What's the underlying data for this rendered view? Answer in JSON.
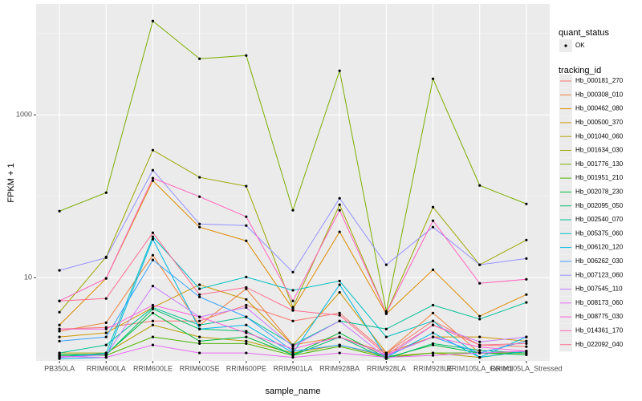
{
  "chart_data": {
    "type": "line",
    "x_label": "sample_name",
    "y_label": "FPKM + 1",
    "log_y": true,
    "grid": true,
    "legend_position": "right",
    "shape_legend": {
      "title": "quant_status",
      "labels": [
        "OK"
      ]
    },
    "color_legend_title": "tracking_id",
    "point_color": "#000000",
    "categories": [
      "PB350LA",
      "RRIM600LA",
      "RRIM600LE",
      "RRIM600SE",
      "RRIM600PE",
      "RRIM901LA",
      "RRIM928BA",
      "RRIM928LA",
      "RRIM928LE",
      "RRIM105LA_Control",
      "RRIM105LA_Stressed"
    ],
    "ylim": [
      0.95,
      23000
    ],
    "yticks": [
      10,
      1000
    ],
    "series": [
      {
        "name": "Hb_000181_270",
        "color": "#F8766D",
        "values": [
          2.34,
          2.45,
          2.94,
          2.94,
          4.6,
          2.94,
          3.68,
          1.19,
          2.94,
          1.49,
          1.42
        ]
      },
      {
        "name": "Hb_000308_010",
        "color": "#EC823C",
        "values": [
          2.2,
          2.8,
          18.9,
          2.6,
          7.3,
          1.49,
          1.87,
          1.19,
          3.68,
          1.19,
          1.19
        ]
      },
      {
        "name": "Hb_000462_080",
        "color": "#DE8C00",
        "values": [
          2.62,
          9.8,
          155.6,
          41.8,
          28.4,
          4.13,
          36.5,
          3.6,
          12.5,
          3.37,
          6.2
        ]
      },
      {
        "name": "Hb_000500_370",
        "color": "#CD9600",
        "values": [
          1.87,
          2.1,
          4.3,
          8.2,
          5.4,
          1.49,
          6.6,
          1.19,
          1.87,
          1.87,
          1.66
        ]
      },
      {
        "name": "Hb_001040_060",
        "color": "#B79F00",
        "values": [
          1.19,
          1.19,
          2.62,
          1.87,
          1.66,
          1.19,
          1.49,
          1.08,
          1.19,
          1.05,
          1.25
        ]
      },
      {
        "name": "Hb_001634_030",
        "color": "#9DA700",
        "values": [
          3.77,
          18.0,
          369,
          171,
          133,
          4.32,
          78.8,
          3.68,
          73.6,
          14.4,
          29.0
        ]
      },
      {
        "name": "Hb_001776_130",
        "color": "#7CAE00",
        "values": [
          65.7,
          110.7,
          14220,
          4890,
          5360,
          67.3,
          3480,
          3.86,
          2775,
          135.8,
          80.6
        ]
      },
      {
        "name": "Hb_001951_210",
        "color": "#4DB400",
        "values": [
          1.11,
          1.11,
          1.87,
          1.55,
          1.55,
          1.11,
          1.43,
          1.04,
          1.19,
          1.19,
          1.19
        ]
      },
      {
        "name": "Hb_002078_230",
        "color": "#00BA38",
        "values": [
          1.13,
          1.15,
          3.68,
          1.66,
          1.87,
          1.13,
          2.1,
          1.04,
          1.49,
          1.19,
          1.13
        ]
      },
      {
        "name": "Hb_002095_050",
        "color": "#00BE6C",
        "values": [
          1.11,
          1.13,
          4.13,
          2.34,
          2.2,
          1.11,
          1.87,
          1.01,
          1.55,
          1.28,
          1.19
        ]
      },
      {
        "name": "Hb_002540_070",
        "color": "#00C096",
        "values": [
          1.19,
          1.49,
          4.3,
          2.62,
          3.3,
          1.49,
          2.94,
          2.34,
          4.6,
          3.1,
          4.96
        ]
      },
      {
        "name": "Hb_005375_060",
        "color": "#00BFC4",
        "values": [
          1.05,
          1.19,
          31.8,
          7.3,
          10.2,
          7.0,
          9.1,
          1.87,
          2.94,
          1.05,
          1.25
        ]
      },
      {
        "name": "Hb_006120_120",
        "color": "#00B8E7",
        "values": [
          1.01,
          1.05,
          29.7,
          2.34,
          2.62,
          1.19,
          8.2,
          1.05,
          2.1,
          1.05,
          1.87
        ]
      },
      {
        "name": "Hb_006262_030",
        "color": "#35A2FF",
        "values": [
          1.66,
          1.87,
          16.5,
          5.8,
          3.3,
          1.25,
          1.49,
          1.11,
          1.87,
          1.19,
          1.66
        ]
      },
      {
        "name": "Hb_007123_060",
        "color": "#9590FF",
        "values": [
          12.3,
          17.6,
          209,
          45.7,
          43.7,
          11.7,
          94.4,
          14.4,
          41.8,
          14.4,
          17.2
        ]
      },
      {
        "name": "Hb_007545_110",
        "color": "#C77CFF",
        "values": [
          1.05,
          1.13,
          7.9,
          3.3,
          4.3,
          1.43,
          2.94,
          1.05,
          2.62,
          1.63,
          1.87
        ]
      },
      {
        "name": "Hb_008173_060",
        "color": "#E76BF3",
        "values": [
          1.08,
          1.05,
          1.49,
          1.19,
          1.19,
          1.05,
          1.19,
          1.05,
          1.11,
          1.19,
          1.25
        ]
      },
      {
        "name": "Hb_008775_030",
        "color": "#FA62DB",
        "values": [
          2.34,
          2.34,
          4.6,
          3.3,
          2.1,
          1.34,
          1.87,
          1.13,
          1.87,
          1.41,
          1.25
        ]
      },
      {
        "name": "Hb_014361_170",
        "color": "#FF62BC",
        "values": [
          5.18,
          9.8,
          167,
          98.9,
          56.1,
          5.18,
          67.3,
          3.68,
          50.1,
          8.53,
          9.56
        ]
      },
      {
        "name": "Hb_022092_040",
        "color": "#FF6C91",
        "values": [
          5.18,
          5.55,
          35.6,
          6.2,
          7.6,
          3.95,
          3.45,
          1.13,
          2.62,
          1.49,
          1.55
        ]
      }
    ]
  }
}
